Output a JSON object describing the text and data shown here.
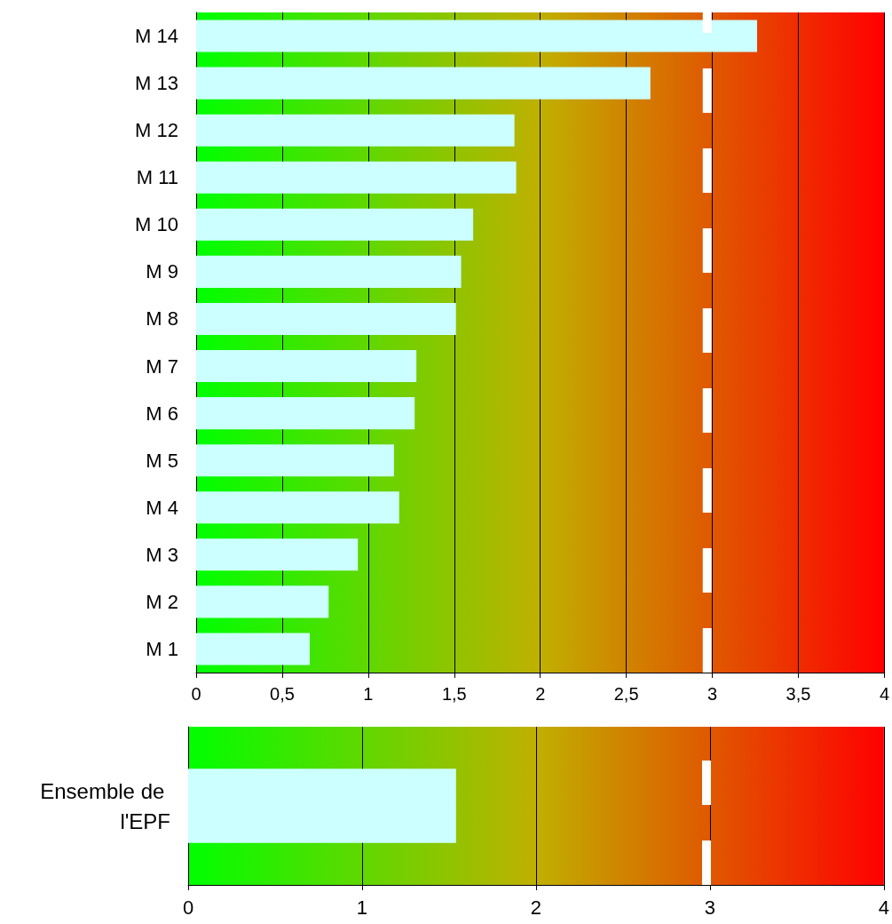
{
  "chart_data": [
    {
      "type": "bar",
      "orientation": "horizontal",
      "categories": [
        "M 14",
        "M 13",
        "M 12",
        "M 11",
        "M 10",
        "M 9",
        "M 8",
        "M 7",
        "M 6",
        "M 5",
        "M 4",
        "M 3",
        "M 2",
        "M 1"
      ],
      "values": [
        3.26,
        2.64,
        1.85,
        1.86,
        1.61,
        1.54,
        1.51,
        1.28,
        1.27,
        1.15,
        1.18,
        0.94,
        0.77,
        0.66
      ],
      "color": "#ccffff",
      "xlim": [
        0,
        4
      ],
      "xticks": [
        0,
        {
          "value": 0.5,
          "label": "0,5"
        },
        1,
        {
          "value": 1.5,
          "label": "1,5"
        },
        2,
        {
          "value": 2.5,
          "label": "2,5"
        },
        3,
        {
          "value": 3.5,
          "label": "3,5"
        },
        4
      ],
      "grid": "x",
      "ref_lines": [
        {
          "axis": "x",
          "value": 2.97,
          "color": "#ffffff",
          "line_style": "dashed"
        }
      ],
      "bands": [
        {
          "axis": "x",
          "from": 0,
          "to": 4
        }
      ]
    },
    {
      "type": "bar",
      "orientation": "horizontal",
      "categories": [
        "Ensemble de l'EPF"
      ],
      "values": [
        1.54
      ],
      "color": "#ccffff",
      "xlim": [
        0,
        4
      ],
      "xticks": [
        0,
        1,
        2,
        3,
        4
      ],
      "grid": "x",
      "ref_lines": [
        {
          "axis": "x",
          "value": 2.98,
          "color": "#ffffff",
          "line_style": "dashed"
        }
      ],
      "bands": [
        {
          "axis": "x",
          "from": 0,
          "to": 4
        }
      ]
    }
  ]
}
